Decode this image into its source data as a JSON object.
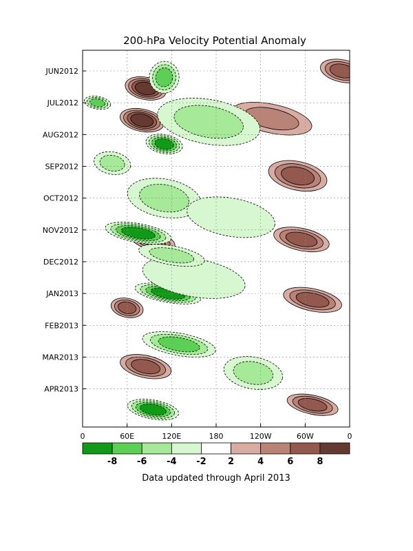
{
  "chart_data": {
    "type": "heatmap",
    "title": "200-hPa Velocity Potential Anomaly",
    "footnote": "Data updated through April 2013",
    "x_ticks": [
      "0",
      "60E",
      "120E",
      "180",
      "120W",
      "60W",
      "0"
    ],
    "x_tick_degrees": [
      0,
      60,
      120,
      180,
      240,
      300,
      360
    ],
    "y_ticks": [
      "JUN2012",
      "JUL2012",
      "AUG2012",
      "SEP2012",
      "OCT2012",
      "NOV2012",
      "DEC2012",
      "JAN2013",
      "FEB2013",
      "MAR2013",
      "APR2013"
    ],
    "y_tick_months": [
      1,
      2,
      3,
      4,
      5,
      6,
      7,
      8,
      9,
      10,
      11
    ],
    "y_range": [
      0.35,
      12.2
    ],
    "x_range": [
      0,
      360
    ],
    "colorbar": {
      "labels": [
        "-8",
        "-6",
        "-4",
        "-2",
        "2",
        "4",
        "6",
        "8"
      ],
      "colors": [
        "#109a18",
        "#5ccf55",
        "#a6ea99",
        "#d6f7cf",
        "#ffffff",
        "#d8aca3",
        "#b98377",
        "#93584e",
        "#653a31"
      ]
    },
    "contour_zero_label": "0",
    "features": [
      {
        "lon": 85,
        "t": 1.55,
        "rx": 28,
        "ry": 0.35,
        "level": 4
      },
      {
        "lon": 80,
        "t": 2.55,
        "rx": 30,
        "ry": 0.35,
        "level": 4
      },
      {
        "lon": 95,
        "t": 6.35,
        "rx": 30,
        "ry": 0.28,
        "level": 3
      },
      {
        "lon": 60,
        "t": 6.0,
        "rx": 22,
        "ry": 0.2,
        "level": 2
      },
      {
        "lon": 60,
        "t": 8.45,
        "rx": 22,
        "ry": 0.3,
        "level": 3
      },
      {
        "lon": 85,
        "t": 10.3,
        "rx": 35,
        "ry": 0.35,
        "level": 3
      },
      {
        "lon": 290,
        "t": 4.3,
        "rx": 40,
        "ry": 0.45,
        "level": 3
      },
      {
        "lon": 295,
        "t": 6.3,
        "rx": 38,
        "ry": 0.35,
        "level": 3
      },
      {
        "lon": 310,
        "t": 8.2,
        "rx": 40,
        "ry": 0.35,
        "level": 3
      },
      {
        "lon": 310,
        "t": 11.5,
        "rx": 35,
        "ry": 0.3,
        "level": 3
      },
      {
        "lon": 350,
        "t": 1.0,
        "rx": 30,
        "ry": 0.35,
        "level": 3
      },
      {
        "lon": 255,
        "t": 2.5,
        "rx": 55,
        "ry": 0.45,
        "level": 2
      },
      {
        "lon": 75,
        "t": 6.1,
        "rx": 45,
        "ry": 0.3,
        "level": -4
      },
      {
        "lon": 115,
        "t": 8.0,
        "rx": 45,
        "ry": 0.28,
        "level": -4
      },
      {
        "lon": 95,
        "t": 11.65,
        "rx": 35,
        "ry": 0.3,
        "level": -4
      },
      {
        "lon": 110,
        "t": 3.3,
        "rx": 25,
        "ry": 0.3,
        "level": -4
      },
      {
        "lon": 110,
        "t": 1.2,
        "rx": 20,
        "ry": 0.5,
        "level": -3
      },
      {
        "lon": 20,
        "t": 2.0,
        "rx": 18,
        "ry": 0.2,
        "level": -3
      },
      {
        "lon": 170,
        "t": 2.6,
        "rx": 70,
        "ry": 0.7,
        "level": -2
      },
      {
        "lon": 110,
        "t": 5.0,
        "rx": 50,
        "ry": 0.6,
        "level": -2
      },
      {
        "lon": 130,
        "t": 9.6,
        "rx": 50,
        "ry": 0.35,
        "level": -3
      },
      {
        "lon": 200,
        "t": 5.6,
        "rx": 60,
        "ry": 0.6,
        "level": -1
      },
      {
        "lon": 150,
        "t": 7.5,
        "rx": 70,
        "ry": 0.6,
        "level": -1
      },
      {
        "lon": 230,
        "t": 10.5,
        "rx": 40,
        "ry": 0.5,
        "level": -2
      },
      {
        "lon": 40,
        "t": 3.9,
        "rx": 25,
        "ry": 0.35,
        "level": -2
      },
      {
        "lon": 120,
        "t": 6.8,
        "rx": 45,
        "ry": 0.3,
        "level": -2
      }
    ]
  }
}
